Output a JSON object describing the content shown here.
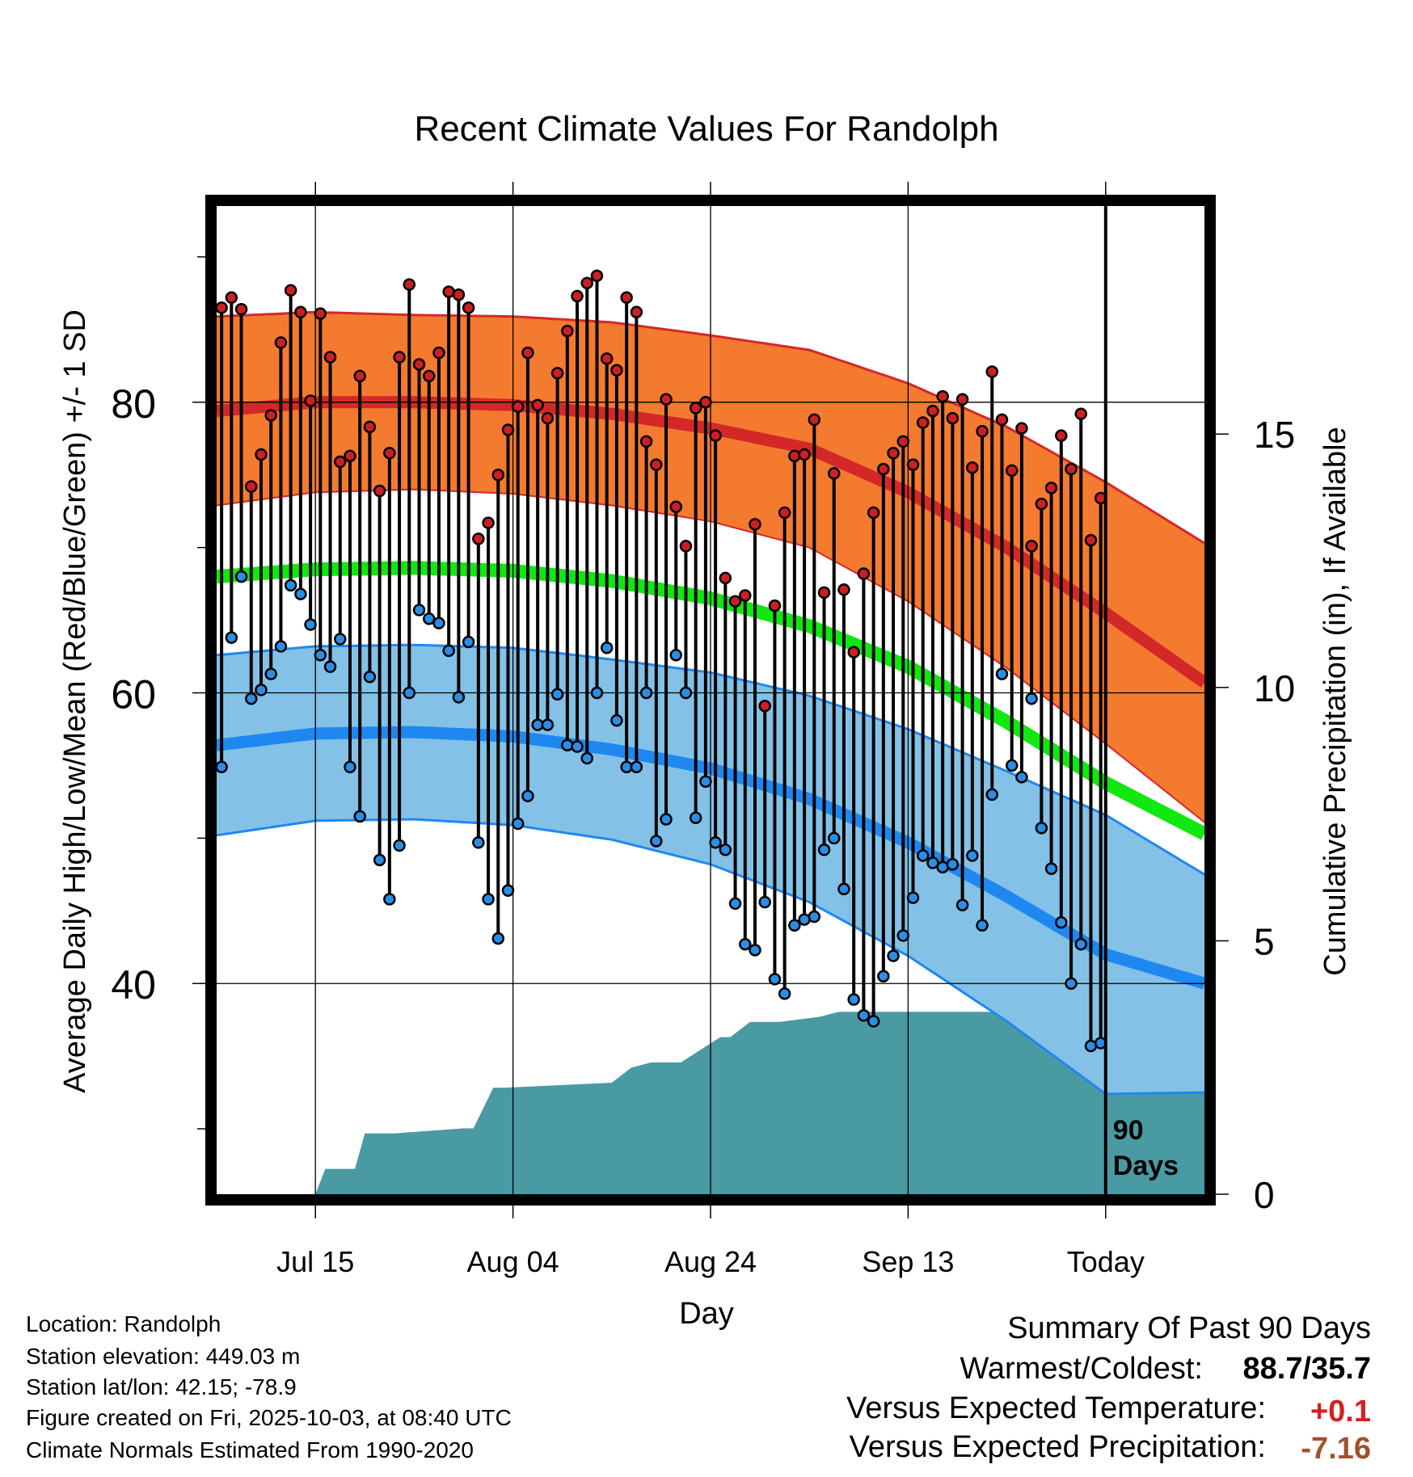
{
  "title": "Recent Climate Values For Randolph",
  "chart_data": {
    "type": "line",
    "title": "Recent Climate Values For Randolph",
    "xlabel": "Day",
    "ylabel": "Average Daily High/Low/Mean (Red/Blue/Green) +/- 1 SD",
    "y2label": "Cumulative Precipitation (in), If Available",
    "x_tick_labels": [
      "Jul 15",
      "Aug 04",
      "Aug 24",
      "Sep 13",
      "Today"
    ],
    "x_tick_days": [
      10,
      30,
      50,
      70,
      90
    ],
    "xlim": [
      0,
      100
    ],
    "ylim": [
      25.5,
      93.5
    ],
    "y_ticks": [
      40,
      60,
      80
    ],
    "y2lim": [
      0,
      19.5
    ],
    "y2_ticks": [
      0,
      5,
      10,
      15
    ],
    "today_label": "90\nDays",
    "normals": {
      "days": [
        0,
        10,
        20,
        30,
        40,
        50,
        60,
        70,
        80,
        90,
        100
      ],
      "high_mean": [
        79.4,
        80.0,
        80.0,
        79.8,
        79.2,
        78.2,
        76.8,
        73.8,
        70.0,
        65.5,
        60.7
      ],
      "high_sd": [
        6.5,
        6.2,
        6.0,
        6.1,
        6.3,
        6.4,
        6.8,
        7.5,
        8.3,
        9.0,
        9.6
      ],
      "low_mean": [
        56.4,
        57.2,
        57.3,
        57.0,
        56.1,
        54.8,
        52.7,
        49.7,
        46.0,
        42.0,
        40.0
      ],
      "low_sd": [
        6.2,
        6.0,
        6.0,
        6.1,
        6.2,
        6.6,
        7.1,
        7.8,
        8.6,
        9.6,
        7.5
      ],
      "mean_mean": [
        68.0,
        68.5,
        68.6,
        68.4,
        67.7,
        66.5,
        64.6,
        61.8,
        58.0,
        53.8,
        50.3
      ]
    },
    "highs": [
      86.5,
      87.2,
      86.4,
      74.2,
      76.4,
      79.1,
      84.1,
      87.7,
      86.2,
      80.1,
      86.1,
      83.1,
      75.9,
      76.3,
      81.8,
      78.3,
      73.9,
      76.5,
      83.1,
      88.1,
      82.6,
      81.8,
      83.4,
      87.6,
      87.4,
      86.5,
      70.6,
      71.7,
      75.0,
      78.1,
      79.7,
      83.4,
      79.8,
      78.9,
      82.0,
      84.9,
      87.3,
      88.2,
      88.7,
      83.0,
      82.2,
      87.2,
      86.2,
      77.3,
      75.7,
      80.2,
      72.8,
      70.1,
      79.6,
      80.0,
      77.7,
      67.9,
      66.3,
      66.7,
      71.6,
      59.1,
      66.0,
      72.4,
      76.3,
      76.4,
      78.8,
      66.9,
      75.1,
      67.1,
      62.8,
      68.2,
      72.4,
      75.4,
      76.5,
      77.3,
      75.7,
      78.6,
      79.4,
      80.4,
      78.9,
      80.2,
      75.5,
      78.0,
      82.1,
      78.8,
      75.3,
      78.2,
      70.1,
      73.0,
      74.1,
      77.7,
      75.4,
      79.2,
      70.5,
      73.4
    ],
    "lows": [
      54.9,
      63.8,
      68.0,
      59.6,
      60.2,
      61.3,
      63.2,
      67.4,
      66.8,
      64.7,
      62.6,
      61.8,
      63.7,
      54.9,
      51.5,
      61.1,
      48.5,
      45.8,
      49.5,
      60.0,
      65.7,
      65.1,
      64.8,
      62.9,
      59.7,
      63.5,
      49.7,
      45.8,
      43.1,
      46.4,
      51.0,
      52.9,
      57.8,
      57.8,
      59.9,
      56.4,
      56.3,
      55.5,
      60.0,
      63.1,
      58.1,
      54.9,
      54.9,
      60.0,
      49.8,
      51.3,
      62.6,
      60.0,
      51.4,
      53.9,
      49.7,
      49.2,
      45.5,
      42.7,
      42.3,
      45.6,
      40.3,
      39.3,
      44.0,
      44.4,
      44.6,
      49.2,
      50.0,
      46.5,
      38.9,
      37.8,
      37.4,
      40.5,
      41.9,
      43.3,
      45.9,
      48.8,
      48.3,
      48.0,
      48.2,
      45.4,
      48.8,
      44.0,
      53.0,
      61.3,
      55.0,
      54.2,
      59.6,
      50.7,
      47.9,
      44.2,
      40.0,
      42.7,
      35.7,
      35.9
    ],
    "precip": {
      "days": [
        0,
        10,
        11,
        14,
        15,
        18,
        25,
        26,
        28,
        29,
        40,
        42,
        44,
        47,
        51,
        52,
        54,
        57,
        61,
        63,
        67,
        70,
        74,
        79,
        81,
        82,
        84,
        86,
        90,
        100
      ],
      "cumulative": [
        0,
        0,
        0.5,
        0.5,
        1.2,
        1.2,
        1.3,
        1.3,
        2.1,
        2.1,
        2.2,
        2.5,
        2.6,
        2.6,
        3.1,
        3.1,
        3.4,
        3.4,
        3.5,
        3.6,
        3.6,
        3.6,
        3.6,
        3.6,
        4.0,
        4.0,
        4.2,
        4.3,
        4.3,
        4.3
      ]
    }
  },
  "footer": {
    "location": "Location: Randolph",
    "elevation": "Station elevation: 449.03 m",
    "latlon": "Station lat/lon: 42.15; -78.9",
    "created": "Figure created on Fri, 2025-10-03, at 08:40 UTC",
    "normals": "Climate Normals Estimated From 1990-2020"
  },
  "summary": {
    "heading": "Summary Of Past 90 Days",
    "warmest_label": "Warmest/Coldest:",
    "warmest_value": "88.7/35.7",
    "temp_label": "Versus Expected Temperature:",
    "temp_value": "+0.1",
    "precip_label": "Versus Expected Precipitation:",
    "precip_value": "-7.16"
  },
  "colors": {
    "high_band": "#f47a30",
    "high_line": "#d42828",
    "low_band": "#84c1e6",
    "low_line": "#1e88f0",
    "mean_line": "#10e810",
    "precip_fill": "#4a9aa4",
    "temp_value": "#d42020",
    "precip_value": "#a0522d"
  }
}
